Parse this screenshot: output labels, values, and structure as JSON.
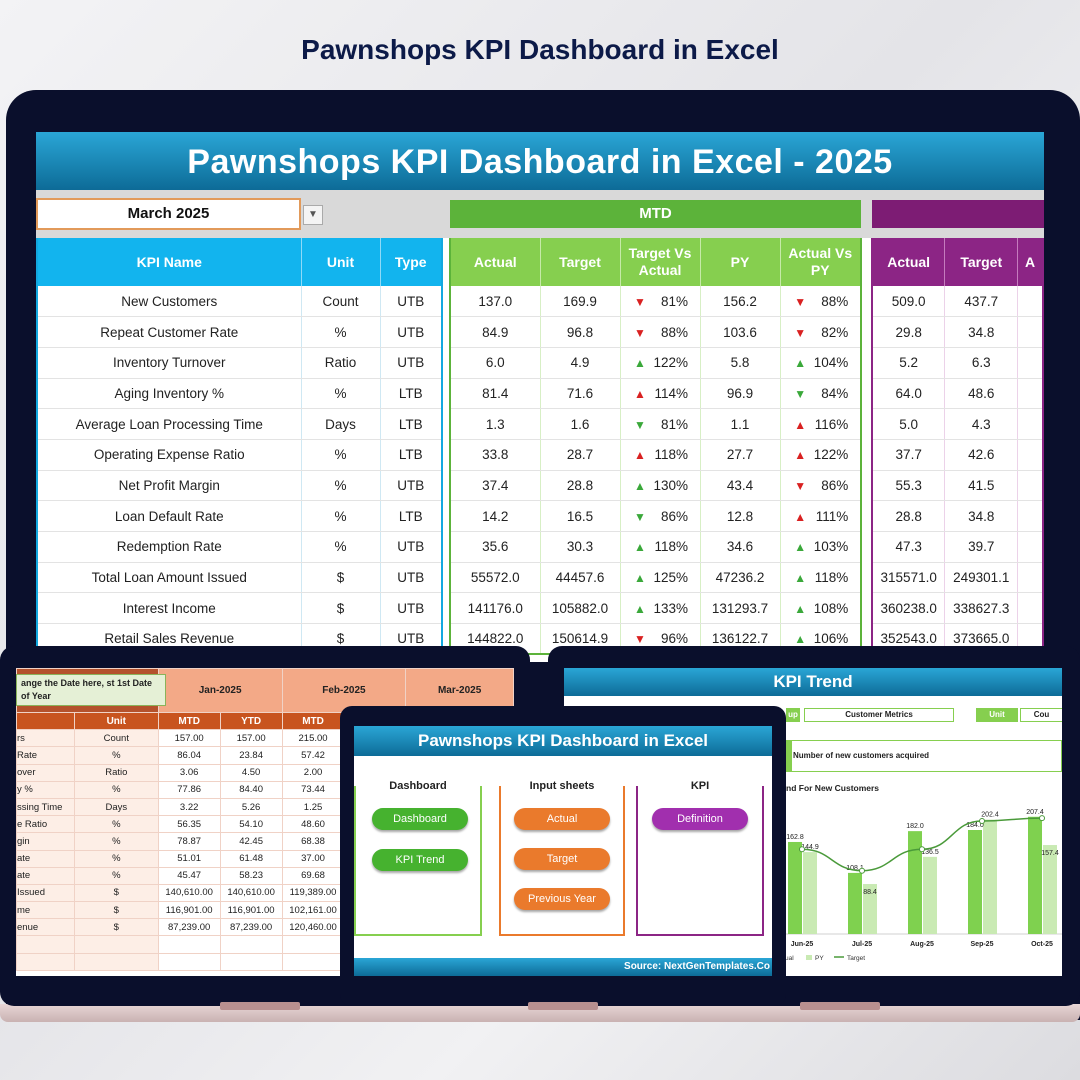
{
  "page_title": "Pawnshops KPI Dashboard in Excel",
  "dashboard": {
    "banner": "Pawnshops KPI Dashboard in Excel - 2025",
    "month": "March 2025",
    "mtd_label": "MTD",
    "kpi_headers": [
      "KPI Name",
      "Unit",
      "Type"
    ],
    "mtd_headers": [
      "Actual",
      "Target",
      "Target Vs Actual",
      "PY",
      "Actual Vs PY"
    ],
    "ytd_headers": [
      "Actual",
      "Target",
      "A"
    ],
    "rows": [
      {
        "name": "New Customers",
        "unit": "Count",
        "type": "UTB",
        "actual": "137.0",
        "target": "169.9",
        "tva_dir": "down",
        "tva": "81%",
        "py": "156.2",
        "avp_dir": "down",
        "avp": "88%",
        "ytd_actual": "509.0",
        "ytd_target": "437.7"
      },
      {
        "name": "Repeat Customer Rate",
        "unit": "%",
        "type": "UTB",
        "actual": "84.9",
        "target": "96.8",
        "tva_dir": "down",
        "tva": "88%",
        "py": "103.6",
        "avp_dir": "down",
        "avp": "82%",
        "ytd_actual": "29.8",
        "ytd_target": "34.8"
      },
      {
        "name": "Inventory Turnover",
        "unit": "Ratio",
        "type": "UTB",
        "actual": "6.0",
        "target": "4.9",
        "tva_dir": "up",
        "tva": "122%",
        "py": "5.8",
        "avp_dir": "up",
        "avp": "104%",
        "ytd_actual": "5.2",
        "ytd_target": "6.3"
      },
      {
        "name": "Aging Inventory %",
        "unit": "%",
        "type": "LTB",
        "actual": "81.4",
        "target": "71.6",
        "tva_dir": "up-red",
        "tva": "114%",
        "py": "96.9",
        "avp_dir": "down-green",
        "avp": "84%",
        "ytd_actual": "64.0",
        "ytd_target": "48.6"
      },
      {
        "name": "Average Loan Processing Time",
        "unit": "Days",
        "type": "LTB",
        "actual": "1.3",
        "target": "1.6",
        "tva_dir": "down-green",
        "tva": "81%",
        "py": "1.1",
        "avp_dir": "up-red",
        "avp": "116%",
        "ytd_actual": "5.0",
        "ytd_target": "4.3"
      },
      {
        "name": "Operating Expense Ratio",
        "unit": "%",
        "type": "LTB",
        "actual": "33.8",
        "target": "28.7",
        "tva_dir": "up-red",
        "tva": "118%",
        "py": "27.7",
        "avp_dir": "up-red",
        "avp": "122%",
        "ytd_actual": "37.7",
        "ytd_target": "42.6"
      },
      {
        "name": "Net Profit Margin",
        "unit": "%",
        "type": "UTB",
        "actual": "37.4",
        "target": "28.8",
        "tva_dir": "up",
        "tva": "130%",
        "py": "43.4",
        "avp_dir": "down",
        "avp": "86%",
        "ytd_actual": "55.3",
        "ytd_target": "41.5"
      },
      {
        "name": "Loan Default Rate",
        "unit": "%",
        "type": "LTB",
        "actual": "14.2",
        "target": "16.5",
        "tva_dir": "down-green",
        "tva": "86%",
        "py": "12.8",
        "avp_dir": "up-red",
        "avp": "111%",
        "ytd_actual": "28.8",
        "ytd_target": "34.8"
      },
      {
        "name": "Redemption Rate",
        "unit": "%",
        "type": "UTB",
        "actual": "35.6",
        "target": "30.3",
        "tva_dir": "up",
        "tva": "118%",
        "py": "34.6",
        "avp_dir": "up",
        "avp": "103%",
        "ytd_actual": "47.3",
        "ytd_target": "39.7"
      },
      {
        "name": "Total Loan Amount Issued",
        "unit": "$",
        "type": "UTB",
        "actual": "55572.0",
        "target": "44457.6",
        "tva_dir": "up",
        "tva": "125%",
        "py": "47236.2",
        "avp_dir": "up",
        "avp": "118%",
        "ytd_actual": "315571.0",
        "ytd_target": "249301.1"
      },
      {
        "name": "Interest Income",
        "unit": "$",
        "type": "UTB",
        "actual": "141176.0",
        "target": "105882.0",
        "tva_dir": "up",
        "tva": "133%",
        "py": "131293.7",
        "avp_dir": "up",
        "avp": "108%",
        "ytd_actual": "360238.0",
        "ytd_target": "338627.3"
      },
      {
        "name": "Retail Sales Revenue",
        "unit": "$",
        "type": "UTB",
        "actual": "144822.0",
        "target": "150614.9",
        "tva_dir": "down",
        "tva": "96%",
        "py": "136122.7",
        "avp_dir": "up",
        "avp": "106%",
        "ytd_actual": "352543.0",
        "ytd_target": "373665.0"
      }
    ]
  },
  "input_sheet": {
    "callout": "ange the Date here, st 1st Date of Year",
    "months": [
      "Jan-2025",
      "Feb-2025",
      "Mar-2025"
    ],
    "unit_header": "Unit",
    "sub_headers": [
      "MTD",
      "YTD",
      "MTD"
    ],
    "rows": [
      {
        "label": "rs",
        "unit": "Count",
        "v": [
          "157.00",
          "157.00",
          "215.00"
        ]
      },
      {
        "label": "Rate",
        "unit": "%",
        "v": [
          "86.04",
          "23.84",
          "57.42"
        ]
      },
      {
        "label": "over",
        "unit": "Ratio",
        "v": [
          "3.06",
          "4.50",
          "2.00"
        ]
      },
      {
        "label": "y %",
        "unit": "%",
        "v": [
          "77.86",
          "84.40",
          "73.44"
        ]
      },
      {
        "label": "ssing Time",
        "unit": "Days",
        "v": [
          "3.22",
          "5.26",
          "1.25"
        ]
      },
      {
        "label": "e Ratio",
        "unit": "%",
        "v": [
          "56.35",
          "54.10",
          "48.60"
        ]
      },
      {
        "label": "gin",
        "unit": "%",
        "v": [
          "78.87",
          "42.45",
          "68.38"
        ]
      },
      {
        "label": "ate",
        "unit": "%",
        "v": [
          "51.01",
          "61.48",
          "37.00"
        ]
      },
      {
        "label": "ate",
        "unit": "%",
        "v": [
          "45.47",
          "58.23",
          "69.68"
        ]
      },
      {
        "label": "Issued",
        "unit": "$",
        "v": [
          "140,610.00",
          "140,610.00",
          "119,389.00"
        ]
      },
      {
        "label": "me",
        "unit": "$",
        "v": [
          "116,901.00",
          "116,901.00",
          "102,161.00"
        ]
      },
      {
        "label": "enue",
        "unit": "$",
        "v": [
          "87,239.00",
          "87,239.00",
          "120,460.00"
        ]
      }
    ]
  },
  "trend": {
    "title": "KPI Trend",
    "group_frag": "up",
    "group_value": "Customer Metrics",
    "unit_label": "Unit",
    "unit_value": "Cou",
    "description": "Number of new customers acquired",
    "chart_title": "nd For New Customers",
    "legend": [
      "ual",
      "PY",
      "Target"
    ]
  },
  "chart_data": {
    "type": "bar",
    "title": "nd For New Customers",
    "categories": [
      "Jun-25",
      "Jul-25",
      "Aug-25",
      "Sep-25",
      "Oct-25"
    ],
    "series": [
      {
        "name": "ual",
        "values": [
          162.8,
          108.1,
          182.0,
          184.0,
          207.4
        ]
      },
      {
        "name": "PY",
        "values": [
          144.9,
          88.4,
          136.5,
          202.4,
          157.4
        ]
      },
      {
        "name": "Target",
        "values": [
          150.0,
          112.0,
          150.0,
          200.0,
          205.0
        ]
      }
    ],
    "data_labels": [
      "162.8",
      "144.9",
      "108.1",
      "88.4",
      "182.0",
      "136.5",
      "184.0",
      "202.4",
      "207.4",
      "157.4"
    ],
    "ylim": [
      0,
      230
    ],
    "colors": {
      "actual": "#7fd14f",
      "py": "#c9eab3",
      "target": "#4a9a3a"
    }
  },
  "navigator": {
    "title": "Pawnshops KPI Dashboard in Excel",
    "groups": [
      {
        "heading": "Dashboard",
        "buttons": [
          "Dashboard",
          "KPI Trend"
        ]
      },
      {
        "heading": "Input sheets",
        "buttons": [
          "Actual",
          "Target",
          "Previous Year"
        ]
      },
      {
        "heading": "KPI",
        "buttons": [
          "Definition"
        ]
      }
    ],
    "footer": "Source: NextGenTemplates.Co"
  }
}
